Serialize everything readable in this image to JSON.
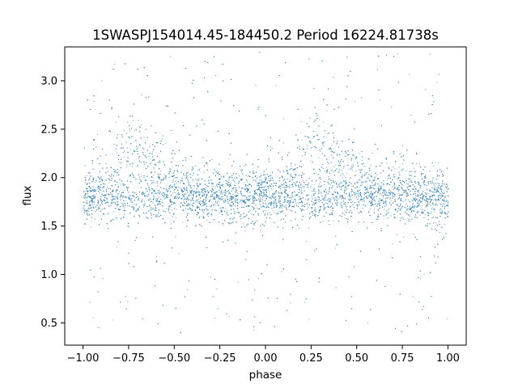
{
  "chart_data": {
    "type": "scatter",
    "title": "1SWASPJ154014.45-184450.2 Period 16224.81738s",
    "xlabel": "phase",
    "ylabel": "flux",
    "xlim": [
      -1.1,
      1.1
    ],
    "ylim": [
      0.27,
      3.35
    ],
    "xticks": [
      -1.0,
      -0.75,
      -0.5,
      -0.25,
      0.0,
      0.25,
      0.5,
      0.75,
      1.0
    ],
    "xtick_labels": [
      "−1.00",
      "−0.75",
      "−0.50",
      "−0.25",
      "0.00",
      "0.25",
      "0.50",
      "0.75",
      "1.00"
    ],
    "yticks": [
      0.5,
      1.0,
      1.5,
      2.0,
      2.5,
      3.0
    ],
    "ytick_labels": [
      "0.5",
      "1.0",
      "1.5",
      "2.0",
      "2.5",
      "3.0"
    ],
    "grid": false,
    "marker_color": "#1f77b4",
    "baseline_flux": 1.8,
    "flux_range": [
      0.4,
      3.3
    ],
    "phase_range": [
      -1.0,
      1.0
    ],
    "series": [
      {
        "values_sampled": [
          {
            "x": -1.0,
            "y": 1.8
          },
          {
            "x": -0.9,
            "y": 1.95
          },
          {
            "x": -0.8,
            "y": 2.2
          },
          {
            "x": -0.75,
            "y": 2.3
          },
          {
            "x": -0.7,
            "y": 2.3
          },
          {
            "x": -0.6,
            "y": 2.15
          },
          {
            "x": -0.5,
            "y": 2.0
          },
          {
            "x": -0.4,
            "y": 1.9
          },
          {
            "x": -0.25,
            "y": 1.85
          },
          {
            "x": -0.1,
            "y": 1.82
          },
          {
            "x": 0.0,
            "y": 1.8
          },
          {
            "x": 0.1,
            "y": 1.95
          },
          {
            "x": 0.2,
            "y": 2.2
          },
          {
            "x": 0.25,
            "y": 2.3
          },
          {
            "x": 0.3,
            "y": 2.3
          },
          {
            "x": 0.4,
            "y": 2.15
          },
          {
            "x": 0.5,
            "y": 2.0
          },
          {
            "x": 0.6,
            "y": 1.9
          },
          {
            "x": 0.75,
            "y": 1.85
          },
          {
            "x": 0.9,
            "y": 1.82
          },
          {
            "x": 1.0,
            "y": 1.8
          }
        ]
      }
    ]
  }
}
